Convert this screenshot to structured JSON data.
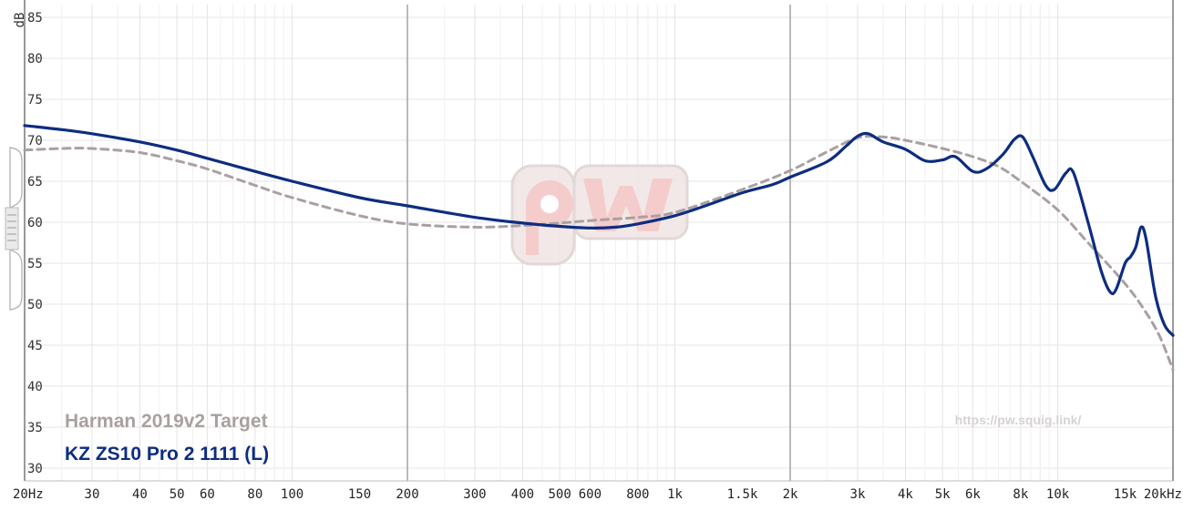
{
  "chart_data": {
    "type": "line",
    "ylabel": "dB",
    "ylim": [
      29,
      87
    ],
    "xlim": [
      20,
      20000
    ],
    "xscale": "log",
    "y_ticks": [
      "85",
      "80",
      "75",
      "70",
      "65",
      "60",
      "55",
      "50",
      "45",
      "40",
      "35",
      "30"
    ],
    "x_ticks": [
      {
        "v": 20,
        "label": "20Hz"
      },
      {
        "v": 30,
        "label": "30"
      },
      {
        "v": 40,
        "label": "40"
      },
      {
        "v": 50,
        "label": "50"
      },
      {
        "v": 60,
        "label": "60"
      },
      {
        "v": 80,
        "label": "80"
      },
      {
        "v": 100,
        "label": "100"
      },
      {
        "v": 150,
        "label": "150"
      },
      {
        "v": 200,
        "label": "200"
      },
      {
        "v": 300,
        "label": "300"
      },
      {
        "v": 400,
        "label": "400"
      },
      {
        "v": 500,
        "label": "500"
      },
      {
        "v": 600,
        "label": "600"
      },
      {
        "v": 800,
        "label": "800"
      },
      {
        "v": 1000,
        "label": "1k"
      },
      {
        "v": 1500,
        "label": "1.5k"
      },
      {
        "v": 2000,
        "label": "2k"
      },
      {
        "v": 3000,
        "label": "3k"
      },
      {
        "v": 4000,
        "label": "4k"
      },
      {
        "v": 5000,
        "label": "5k"
      },
      {
        "v": 6000,
        "label": "6k"
      },
      {
        "v": 8000,
        "label": "8k"
      },
      {
        "v": 10000,
        "label": "10k"
      },
      {
        "v": 15000,
        "label": "15k"
      },
      {
        "v": 20000,
        "label": "20kHz"
      }
    ],
    "series": [
      {
        "name": "Harman 2019v2 Target",
        "color": "#aaa0a0",
        "style": "dashed",
        "points": [
          [
            20,
            68.8
          ],
          [
            25,
            69.0
          ],
          [
            30,
            69.0
          ],
          [
            40,
            68.5
          ],
          [
            50,
            67.5
          ],
          [
            60,
            66.5
          ],
          [
            80,
            64.5
          ],
          [
            100,
            63.0
          ],
          [
            150,
            60.8
          ],
          [
            200,
            59.8
          ],
          [
            300,
            59.4
          ],
          [
            400,
            59.6
          ],
          [
            500,
            59.9
          ],
          [
            600,
            60.2
          ],
          [
            800,
            60.6
          ],
          [
            1000,
            61.2
          ],
          [
            1500,
            64.0
          ],
          [
            2000,
            66.3
          ],
          [
            2500,
            68.6
          ],
          [
            3000,
            70.3
          ],
          [
            3500,
            70.4
          ],
          [
            4000,
            70.0
          ],
          [
            5000,
            69.0
          ],
          [
            6000,
            68.0
          ],
          [
            7000,
            66.8
          ],
          [
            8000,
            65.0
          ],
          [
            10000,
            61.5
          ],
          [
            12000,
            57.5
          ],
          [
            15000,
            52.5
          ],
          [
            17000,
            49.0
          ],
          [
            18500,
            46.0
          ],
          [
            20000,
            42.0
          ]
        ]
      },
      {
        "name": "KZ ZS10 Pro 2 1111 (L)",
        "color": "#0d2d80",
        "style": "solid",
        "points": [
          [
            20,
            71.8
          ],
          [
            25,
            71.3
          ],
          [
            30,
            70.8
          ],
          [
            40,
            69.8
          ],
          [
            50,
            68.8
          ],
          [
            60,
            67.8
          ],
          [
            80,
            66.2
          ],
          [
            100,
            65.0
          ],
          [
            150,
            63.0
          ],
          [
            200,
            62.0
          ],
          [
            300,
            60.6
          ],
          [
            400,
            59.9
          ],
          [
            500,
            59.5
          ],
          [
            600,
            59.3
          ],
          [
            700,
            59.4
          ],
          [
            800,
            59.8
          ],
          [
            1000,
            60.8
          ],
          [
            1200,
            62.0
          ],
          [
            1500,
            63.6
          ],
          [
            1800,
            64.6
          ],
          [
            2000,
            65.5
          ],
          [
            2500,
            67.4
          ],
          [
            2800,
            69.3
          ],
          [
            3000,
            70.5
          ],
          [
            3200,
            70.8
          ],
          [
            3500,
            69.8
          ],
          [
            4000,
            68.9
          ],
          [
            4500,
            67.5
          ],
          [
            5000,
            67.6
          ],
          [
            5400,
            68.0
          ],
          [
            6000,
            66.2
          ],
          [
            6500,
            66.5
          ],
          [
            7200,
            68.3
          ],
          [
            7700,
            70.1
          ],
          [
            8100,
            70.4
          ],
          [
            8600,
            68.0
          ],
          [
            9300,
            64.5
          ],
          [
            9800,
            64.0
          ],
          [
            10500,
            66.0
          ],
          [
            11000,
            66.0
          ],
          [
            12000,
            60.0
          ],
          [
            13000,
            54.0
          ],
          [
            13700,
            51.5
          ],
          [
            14200,
            51.8
          ],
          [
            15000,
            55.0
          ],
          [
            15500,
            55.8
          ],
          [
            16000,
            57.0
          ],
          [
            16500,
            59.4
          ],
          [
            17000,
            58.0
          ],
          [
            18000,
            51.0
          ],
          [
            19000,
            47.5
          ],
          [
            20000,
            46.2
          ]
        ]
      }
    ],
    "grid": true,
    "legend_position": "bottom-left"
  },
  "watermark": {
    "logo": "pw",
    "url": "https://pw.squig.link/"
  }
}
